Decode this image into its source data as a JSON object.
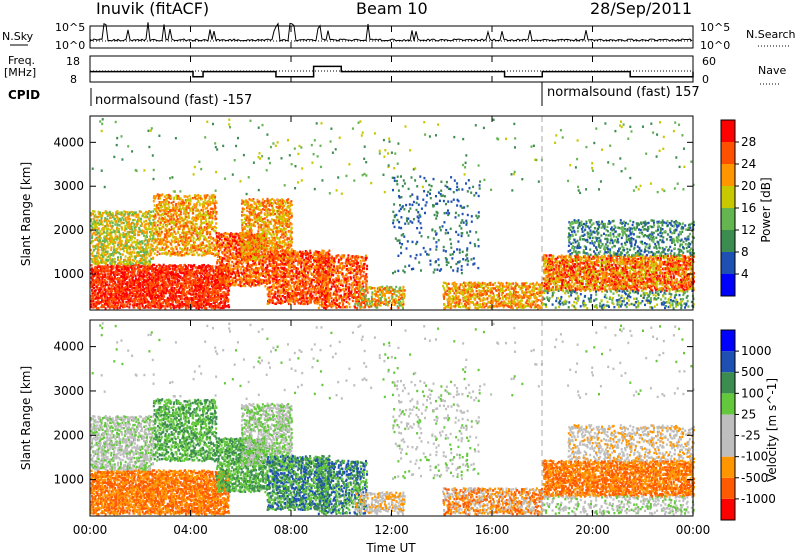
{
  "header": {
    "radar": "Inuvik (fitACF)",
    "beam": "Beam 10",
    "date": "28/Sep/2011"
  },
  "left_labels": {
    "nsky": "N.Sky",
    "freq_line1": "Freq.",
    "freq_line2": "[MHz]",
    "cpid": "CPID"
  },
  "right_labels": {
    "nsearch": "N.Search",
    "nave": "Nave"
  },
  "cpid_segments": [
    {
      "label": "normalsound (fast) -157",
      "start_hour": 0
    },
    {
      "label": "normalsound (fast) 157",
      "start_hour": 18
    }
  ],
  "colors": {
    "power": [
      "#0000ff",
      "#1e50b4",
      "#3c8c50",
      "#64b450",
      "#c8c800",
      "#ff9600",
      "#ff5000",
      "#ff0000"
    ],
    "velocity": [
      "#ff0000",
      "#ff5a00",
      "#ff9600",
      "#bebebe",
      "#bebebe",
      "#64c83c",
      "#3c8c50",
      "#1e50b4",
      "#0000ff"
    ]
  },
  "chart_data": [
    {
      "type": "line",
      "panel": "noise",
      "y_tick_labels": [
        "10^5",
        "10^0"
      ],
      "right_tick_labels": [
        "10^5",
        "10^0"
      ],
      "series": [
        {
          "name": "N.Sky",
          "style": "solid"
        },
        {
          "name": "N.Search",
          "style": "dotted"
        }
      ]
    },
    {
      "type": "line",
      "panel": "frequency",
      "y_tick_labels": [
        "18",
        "8"
      ],
      "right_tick_labels": [
        "60",
        "0"
      ],
      "series": [
        {
          "name": "Freq. [MHz]",
          "style": "solid",
          "x": [
            0,
            3.6,
            4.1,
            4.5,
            5.3,
            7.0,
            7.4,
            8.8,
            8.9,
            10.0,
            12.0,
            16.0,
            16.5,
            18.0,
            18.1,
            21.0,
            21.5,
            24.0
          ],
          "y": [
            12,
            12,
            10,
            12,
            12,
            12,
            10,
            10,
            14,
            12,
            12,
            12,
            10,
            12,
            12,
            12,
            10,
            12
          ]
        },
        {
          "name": "Nave",
          "style": "dotted"
        }
      ]
    },
    {
      "type": "heatmap",
      "panel": "power",
      "xlabel": "",
      "ylabel": "Slant Range [km]",
      "x_range_hours": [
        0,
        24
      ],
      "ylim": [
        180,
        4600
      ],
      "y_ticks": [
        1000,
        2000,
        3000,
        4000
      ],
      "colorbar_label": "Power [dB]",
      "colorbar_ticks": [
        4,
        8,
        12,
        16,
        20,
        24,
        28
      ],
      "colorbar_range": [
        0,
        32
      ]
    },
    {
      "type": "heatmap",
      "panel": "velocity",
      "xlabel": "Time UT",
      "ylabel": "Slant Range [km]",
      "x_range_hours": [
        0,
        24
      ],
      "ylim": [
        180,
        4600
      ],
      "y_ticks": [
        1000,
        2000,
        3000,
        4000
      ],
      "x_tick_labels": [
        "00:00",
        "04:00",
        "08:00",
        "12:00",
        "16:00",
        "20:00",
        "00:00"
      ],
      "colorbar_label": "Velocity [m s^-1]",
      "colorbar_ticks": [
        "1000",
        "500",
        "100",
        "25",
        "-25",
        "-100",
        "-500",
        "-1000"
      ]
    }
  ],
  "scatter_regions": [
    {
      "t0": 0.0,
      "t1": 5.5,
      "r0": 200,
      "r1": 1200,
      "p": [
        6,
        8
      ],
      "v": [
        1,
        3
      ],
      "density": 0.85
    },
    {
      "t0": 0.0,
      "t1": 2.5,
      "r0": 1200,
      "r1": 2400,
      "p": [
        3,
        6
      ],
      "v": [
        3,
        6
      ],
      "density": 0.6
    },
    {
      "t0": 2.5,
      "t1": 5.0,
      "r0": 1400,
      "r1": 2800,
      "p": [
        4,
        7
      ],
      "v": [
        5,
        7
      ],
      "density": 0.55
    },
    {
      "t0": 5.0,
      "t1": 7.0,
      "r0": 700,
      "r1": 1900,
      "p": [
        5,
        8
      ],
      "v": [
        5,
        7
      ],
      "density": 0.7
    },
    {
      "t0": 6.0,
      "t1": 8.0,
      "r0": 1300,
      "r1": 2700,
      "p": [
        4,
        7
      ],
      "v": [
        4,
        6
      ],
      "density": 0.6
    },
    {
      "t0": 7.0,
      "t1": 9.5,
      "r0": 300,
      "r1": 1500,
      "p": [
        5,
        8
      ],
      "v": [
        5,
        8
      ],
      "density": 0.7
    },
    {
      "t0": 9.0,
      "t1": 11.0,
      "r0": 200,
      "r1": 1400,
      "p": [
        5,
        8
      ],
      "v": [
        5,
        8
      ],
      "density": 0.55
    },
    {
      "t0": 10.5,
      "t1": 12.5,
      "r0": 200,
      "r1": 700,
      "p": [
        3,
        7
      ],
      "v": [
        2,
        5
      ],
      "density": 0.5
    },
    {
      "t0": 12.0,
      "t1": 15.5,
      "r0": 1000,
      "r1": 3200,
      "p": [
        1,
        3
      ],
      "v": [
        3,
        6
      ],
      "density": 0.1
    },
    {
      "t0": 14.0,
      "t1": 18.0,
      "r0": 200,
      "r1": 800,
      "p": [
        4,
        7
      ],
      "v": [
        1,
        4
      ],
      "density": 0.6
    },
    {
      "t0": 18.0,
      "t1": 24.0,
      "r0": 600,
      "r1": 1400,
      "p": [
        4,
        8
      ],
      "v": [
        1,
        3
      ],
      "density": 0.8
    },
    {
      "t0": 19.0,
      "t1": 24.0,
      "r0": 1400,
      "r1": 2200,
      "p": [
        1,
        4
      ],
      "v": [
        2,
        5
      ],
      "density": 0.35
    },
    {
      "t0": 18.0,
      "t1": 24.0,
      "r0": 200,
      "r1": 600,
      "p": [
        1,
        5
      ],
      "v": [
        3,
        6
      ],
      "density": 0.3
    },
    {
      "t0": 0.0,
      "t1": 24.0,
      "r0": 2800,
      "r1": 4500,
      "p": [
        2,
        5
      ],
      "v": [
        3,
        6
      ],
      "density": 0.015
    }
  ]
}
